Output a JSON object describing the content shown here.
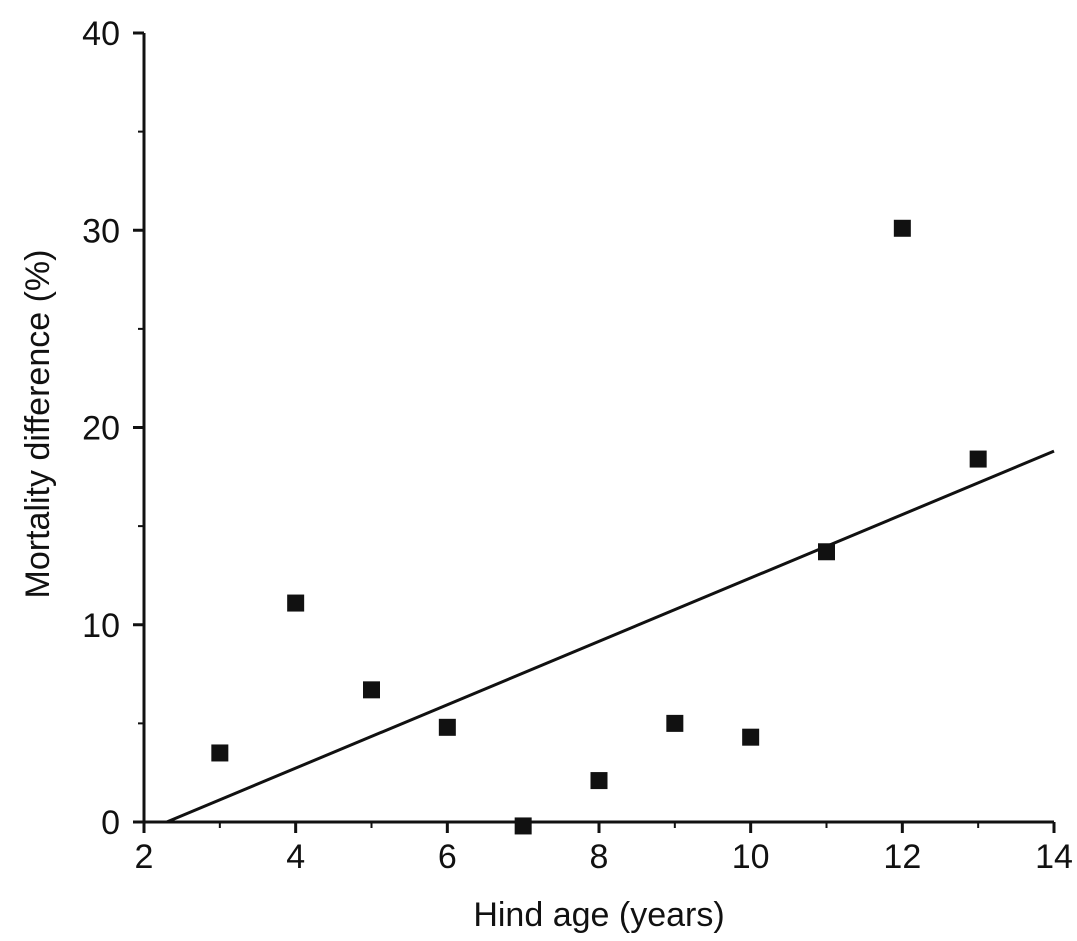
{
  "chart_data": {
    "type": "scatter",
    "title": "",
    "xlabel": "Hind age (years)",
    "ylabel": "Mortality difference (%)",
    "xlim": [
      2,
      14
    ],
    "ylim": [
      0,
      40
    ],
    "xticks": [
      2,
      4,
      6,
      8,
      10,
      12,
      14
    ],
    "yticks": [
      0,
      10,
      20,
      30,
      40
    ],
    "x_tick_labels": [
      "2",
      "4",
      "6",
      "8",
      "10",
      "12",
      "14"
    ],
    "y_tick_labels": [
      "0",
      "10",
      "20",
      "30",
      "40"
    ],
    "grid": false,
    "marker": "filled-square",
    "color": "#111111",
    "series": [
      {
        "x": [
          3,
          4,
          5,
          6,
          7,
          8,
          9,
          10,
          11,
          12,
          13
        ],
        "y": [
          3.5,
          11.1,
          6.7,
          4.8,
          -0.2,
          2.1,
          5.0,
          4.3,
          13.7,
          30.1,
          18.4
        ]
      }
    ],
    "fit_line": {
      "type": "linear",
      "x": [
        2.3,
        14
      ],
      "y": [
        0,
        18.8
      ]
    }
  }
}
